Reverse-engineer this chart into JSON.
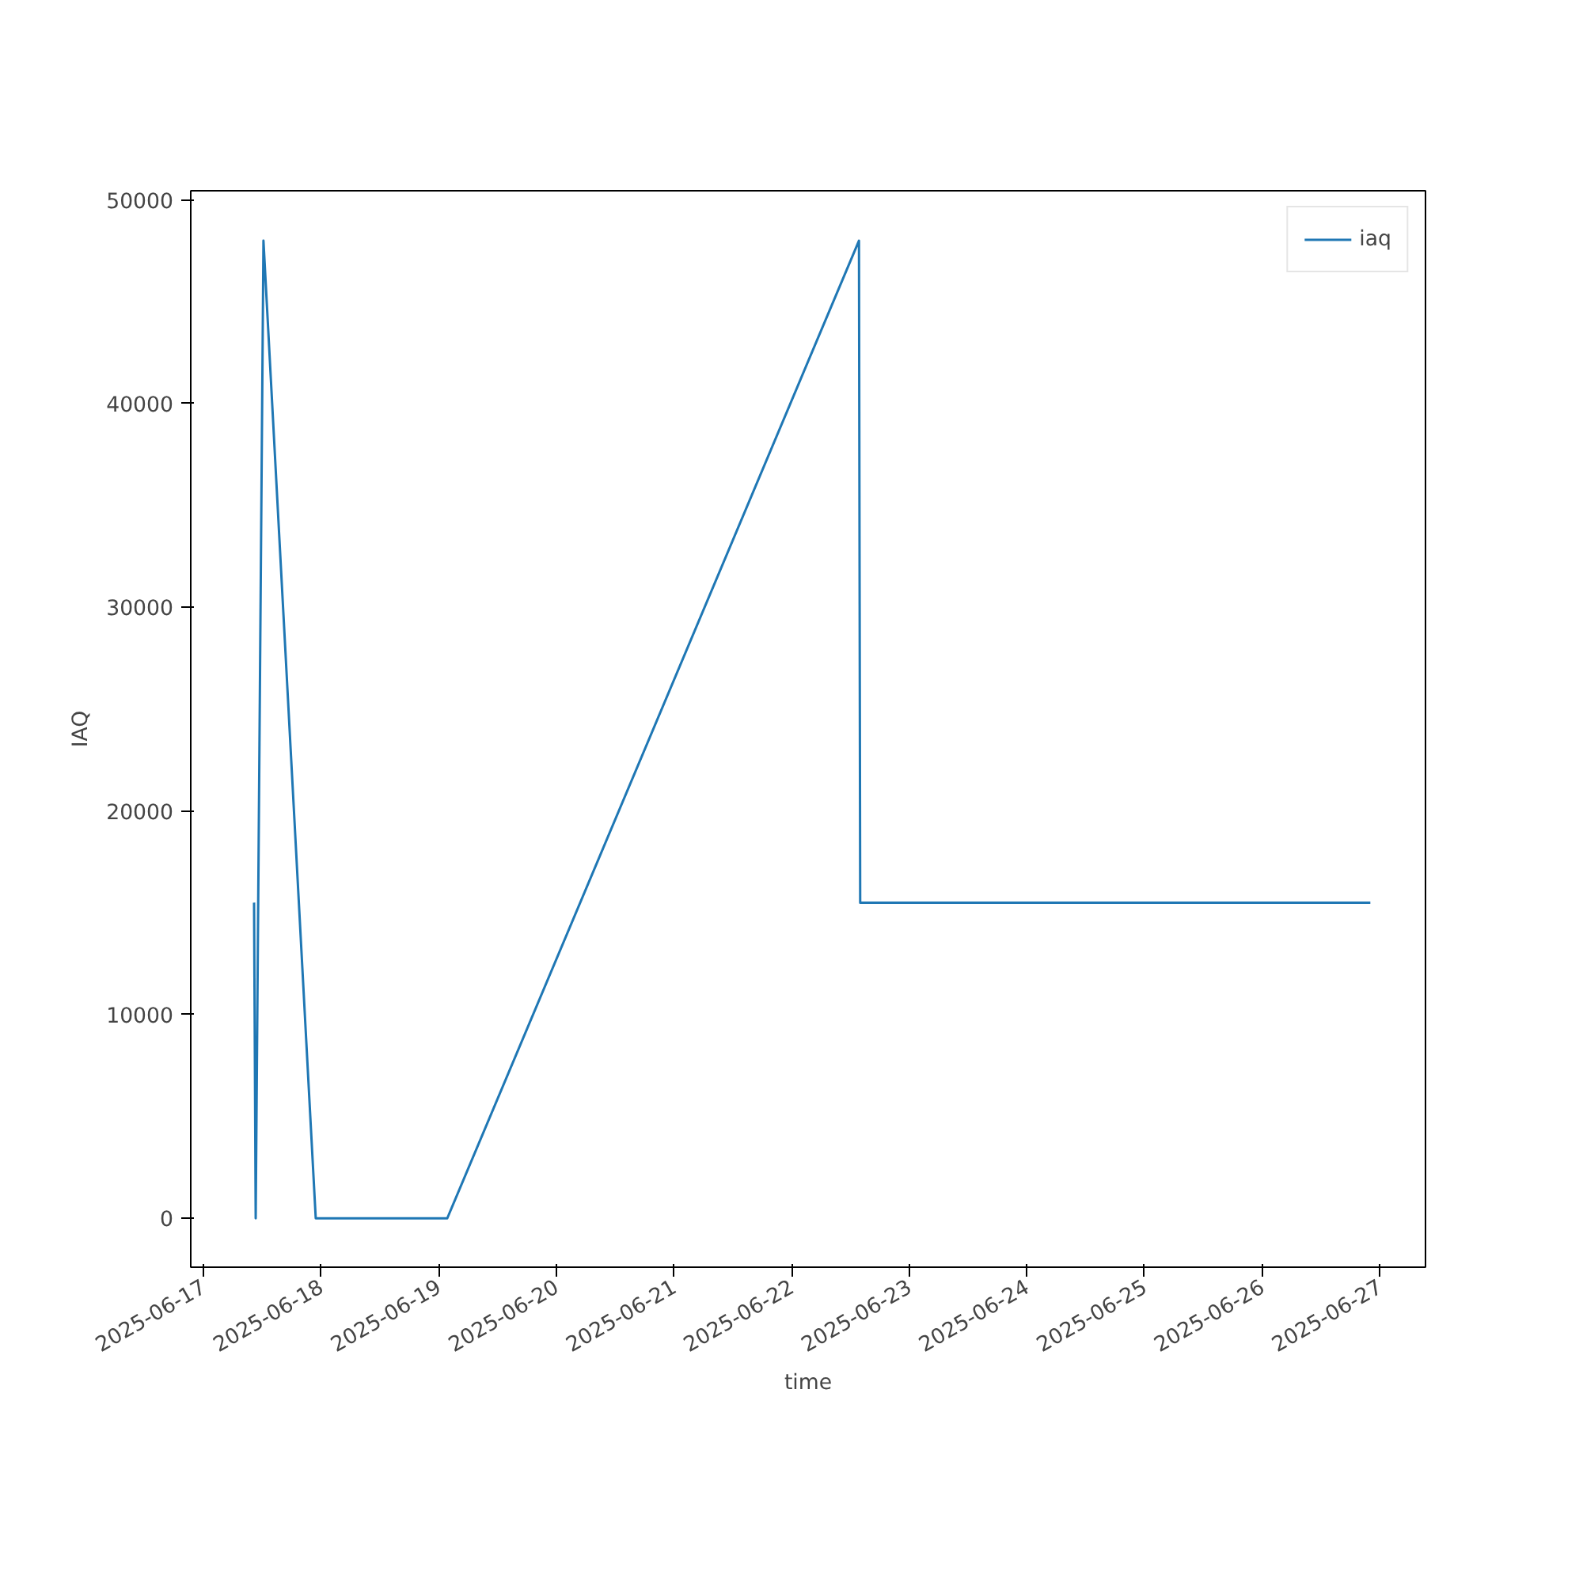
{
  "chart_data": {
    "type": "line",
    "xlabel": "time",
    "ylabel": "IAQ",
    "x": [
      "2025-06-17T10:20",
      "2025-06-17T10:40",
      "2025-06-17T12:15",
      "2025-06-17T22:55",
      "2025-06-19T01:45",
      "2025-06-22T13:45",
      "2025-06-22T14:00",
      "2025-06-26T22:05"
    ],
    "series": [
      {
        "name": "iaq",
        "color": "#1f77b4",
        "values": [
          15500,
          0,
          48000,
          0,
          0,
          48000,
          15500,
          15500
        ]
      }
    ],
    "xlim": [
      "2025-06-16T21:25",
      "2025-06-27T09:20"
    ],
    "xticks": [
      "2025-06-17",
      "2025-06-18",
      "2025-06-19",
      "2025-06-20",
      "2025-06-21",
      "2025-06-22",
      "2025-06-23",
      "2025-06-24",
      "2025-06-25",
      "2025-06-26",
      "2025-06-27"
    ],
    "ylim": [
      -2400,
      50450
    ],
    "yticks": [
      0,
      10000,
      20000,
      30000,
      40000,
      50000
    ],
    "legend": "top right",
    "grid": false,
    "line_style": "solid",
    "marker": "none"
  }
}
